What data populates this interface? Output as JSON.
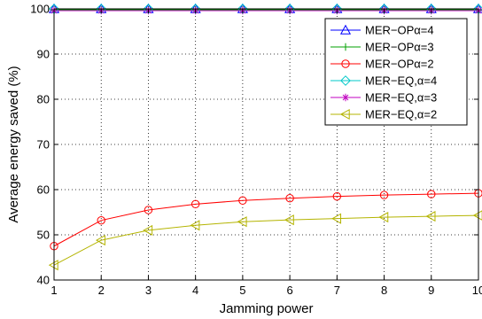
{
  "chart_data": {
    "type": "line",
    "xlabel": "Jamming power",
    "ylabel": "Average energy saved (%)",
    "xlim": [
      1,
      10
    ],
    "ylim": [
      40,
      100
    ],
    "xticks": [
      1,
      2,
      3,
      4,
      5,
      6,
      7,
      8,
      9,
      10
    ],
    "yticks": [
      40,
      50,
      60,
      70,
      80,
      90,
      100
    ],
    "grid": true,
    "legend_position": "top-right",
    "x": [
      1,
      2,
      3,
      4,
      5,
      6,
      7,
      8,
      9,
      10
    ],
    "series": [
      {
        "name": "MER−OPα=4",
        "color": "#0000ff",
        "marker": "triangle-up",
        "values": [
          100,
          100,
          100,
          100,
          100,
          100,
          100,
          100,
          100,
          100
        ]
      },
      {
        "name": "MER−OPα=3",
        "color": "#00a000",
        "marker": "plus",
        "values": [
          99.8,
          99.8,
          99.8,
          99.8,
          99.8,
          99.8,
          99.8,
          99.8,
          99.8,
          99.8
        ]
      },
      {
        "name": "MER−OPα=2",
        "color": "#ff0000",
        "marker": "circle",
        "values": [
          47.5,
          53.2,
          55.5,
          56.8,
          57.6,
          58.1,
          58.5,
          58.8,
          59.0,
          59.2
        ]
      },
      {
        "name": "MER−EQ,α=4",
        "color": "#00c8c8",
        "marker": "diamond",
        "values": [
          100,
          100,
          100,
          100,
          100,
          100,
          100,
          100,
          100,
          100
        ]
      },
      {
        "name": "MER−EQ,α=3",
        "color": "#c000c0",
        "marker": "asterisk",
        "values": [
          99.6,
          99.6,
          99.6,
          99.6,
          99.6,
          99.6,
          99.6,
          99.6,
          99.6,
          99.6
        ]
      },
      {
        "name": "MER−EQ,α=2",
        "color": "#b4b400",
        "marker": "triangle-left",
        "values": [
          43.3,
          48.8,
          51.0,
          52.1,
          52.9,
          53.3,
          53.6,
          53.9,
          54.1,
          54.3
        ]
      }
    ]
  }
}
